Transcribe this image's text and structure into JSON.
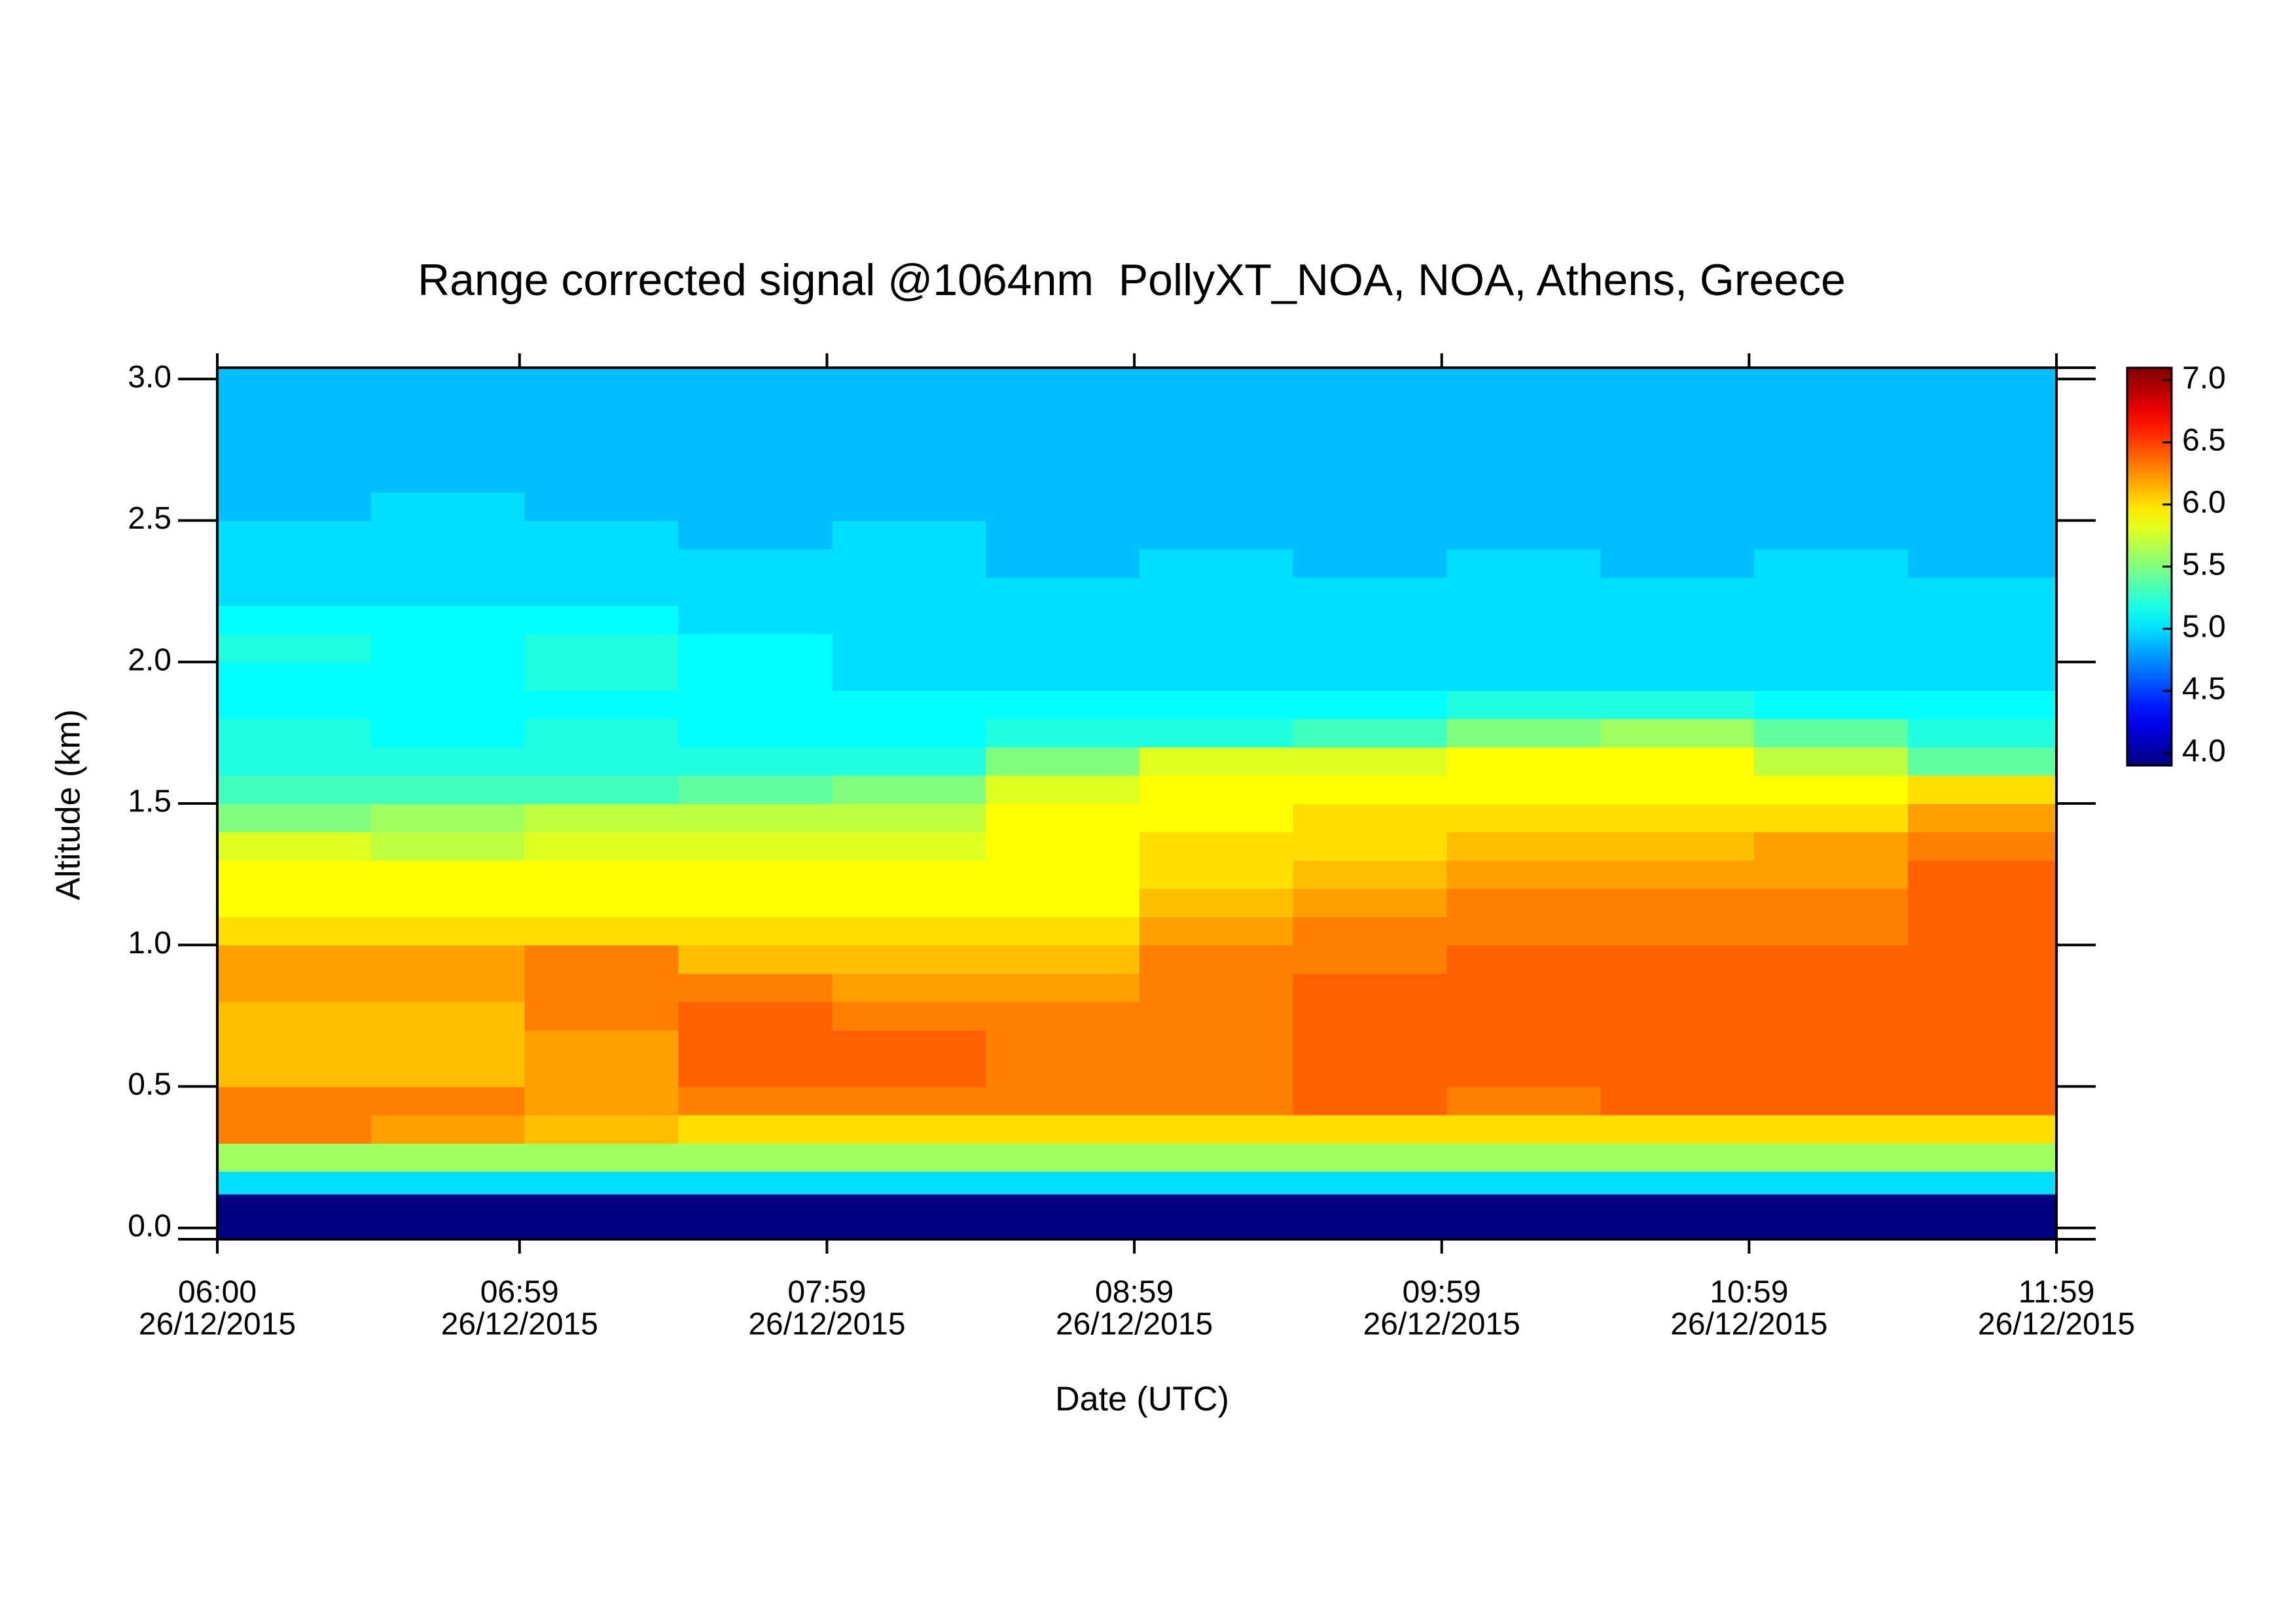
{
  "chart_data": {
    "type": "heatmap",
    "title": "Range corrected signal @1064nm  PollyXT_NOA, NOA, Athens, Greece",
    "x_label": "Date (UTC)",
    "y_label": "Altitude (km)",
    "colormap": "jet",
    "xlim": [
      "2015-12-26T06:00",
      "2015-12-26T11:59"
    ],
    "xticks": [
      {
        "value": "2015-12-26T06:00",
        "label": [
          "06:00",
          "26/12/2015"
        ]
      },
      {
        "value": "2015-12-26T06:59",
        "label": [
          "06:59",
          "26/12/2015"
        ]
      },
      {
        "value": "2015-12-26T07:59",
        "label": [
          "07:59",
          "26/12/2015"
        ]
      },
      {
        "value": "2015-12-26T08:59",
        "label": [
          "08:59",
          "26/12/2015"
        ]
      },
      {
        "value": "2015-12-26T09:59",
        "label": [
          "09:59",
          "26/12/2015"
        ]
      },
      {
        "value": "2015-12-26T10:59",
        "label": [
          "10:59",
          "26/12/2015"
        ]
      },
      {
        "value": "2015-12-26T11:59",
        "label": [
          "11:59",
          "26/12/2015"
        ]
      }
    ],
    "ylim": [
      -0.04,
      3.04
    ],
    "yticks": [
      {
        "value": 0,
        "label": "0.0"
      },
      0.5,
      {
        "value": 1,
        "label": "1.0"
      },
      1.5,
      {
        "value": 2,
        "label": "2.0"
      },
      2.5,
      {
        "value": 3,
        "label": "3.0"
      }
    ],
    "zlim": [
      3.9,
      7.1
    ],
    "zticks": [
      {
        "value": 4,
        "label": "4.0"
      },
      4.5,
      {
        "value": 5,
        "label": "5.0"
      },
      5.5,
      {
        "value": 6,
        "label": "6.0"
      },
      6.5,
      {
        "value": 7,
        "label": "7.0"
      }
    ],
    "xbins": [
      "2015-12-26T06:00",
      "2015-12-26T06:30",
      "2015-12-26T07:00",
      "2015-12-26T07:30",
      "2015-12-26T08:00",
      "2015-12-26T08:30",
      "2015-12-26T09:00",
      "2015-12-26T09:30",
      "2015-12-26T10:00",
      "2015-12-26T10:30",
      "2015-12-26T11:00",
      "2015-12-26T11:30",
      "2015-12-26T11:59"
    ],
    "ybins": [
      -0.04,
      0.12,
      0.2,
      0.3,
      0.4,
      0.5,
      0.6,
      0.7,
      0.8,
      0.9,
      1.0,
      1.1,
      1.2,
      1.3,
      1.4,
      1.5,
      1.6,
      1.7,
      1.8,
      1.9,
      2.0,
      2.1,
      2.2,
      2.3,
      2.4,
      2.5,
      2.6,
      2.7,
      2.8,
      2.9,
      3.04
    ],
    "z": [
      [
        3.9,
        3.9,
        3.9,
        3.9,
        3.9,
        3.9,
        3.9,
        3.9,
        3.9,
        3.9,
        3.9,
        3.9
      ],
      [
        5.0,
        5.0,
        5.0,
        5.0,
        5.0,
        5.0,
        5.0,
        5.0,
        5.0,
        5.0,
        5.0,
        5.0
      ],
      [
        5.6,
        5.6,
        5.6,
        5.6,
        5.6,
        5.6,
        5.6,
        5.6,
        5.6,
        5.6,
        5.6,
        5.6
      ],
      [
        6.3,
        6.2,
        6.1,
        6.0,
        6.0,
        6.0,
        6.0,
        6.0,
        6.0,
        6.0,
        6.0,
        6.0
      ],
      [
        6.3,
        6.3,
        6.2,
        6.3,
        6.3,
        6.3,
        6.3,
        6.4,
        6.3,
        6.4,
        6.4,
        6.4
      ],
      [
        6.1,
        6.1,
        6.2,
        6.4,
        6.4,
        6.3,
        6.3,
        6.4,
        6.4,
        6.4,
        6.4,
        6.4
      ],
      [
        6.1,
        6.1,
        6.2,
        6.4,
        6.4,
        6.3,
        6.3,
        6.4,
        6.4,
        6.4,
        6.4,
        6.4
      ],
      [
        6.1,
        6.1,
        6.3,
        6.4,
        6.3,
        6.3,
        6.3,
        6.4,
        6.4,
        6.4,
        6.4,
        6.4
      ],
      [
        6.2,
        6.2,
        6.3,
        6.3,
        6.2,
        6.2,
        6.3,
        6.4,
        6.4,
        6.4,
        6.4,
        6.4
      ],
      [
        6.2,
        6.2,
        6.3,
        6.1,
        6.1,
        6.1,
        6.3,
        6.3,
        6.4,
        6.4,
        6.4,
        6.4
      ],
      [
        6.0,
        6.0,
        6.0,
        6.0,
        6.0,
        6.0,
        6.2,
        6.3,
        6.3,
        6.3,
        6.3,
        6.4
      ],
      [
        5.9,
        5.9,
        5.9,
        5.9,
        5.9,
        5.9,
        6.1,
        6.2,
        6.3,
        6.3,
        6.3,
        6.4
      ],
      [
        5.9,
        5.9,
        5.9,
        5.9,
        5.9,
        5.9,
        6.0,
        6.1,
        6.2,
        6.2,
        6.2,
        6.4
      ],
      [
        5.8,
        5.7,
        5.8,
        5.8,
        5.8,
        5.9,
        6.0,
        6.0,
        6.1,
        6.1,
        6.2,
        6.3
      ],
      [
        5.5,
        5.6,
        5.7,
        5.7,
        5.7,
        5.9,
        5.9,
        6.0,
        6.0,
        6.0,
        6.0,
        6.2
      ],
      [
        5.3,
        5.3,
        5.3,
        5.4,
        5.5,
        5.8,
        5.9,
        5.9,
        5.9,
        5.9,
        5.9,
        6.0
      ],
      [
        5.2,
        5.2,
        5.2,
        5.2,
        5.2,
        5.5,
        5.8,
        5.8,
        5.9,
        5.9,
        5.7,
        5.4
      ],
      [
        5.2,
        5.1,
        5.2,
        5.1,
        5.1,
        5.2,
        5.2,
        5.3,
        5.5,
        5.6,
        5.4,
        5.2
      ],
      [
        5.1,
        5.1,
        5.1,
        5.1,
        5.1,
        5.1,
        5.1,
        5.1,
        5.2,
        5.2,
        5.1,
        5.1
      ],
      [
        5.1,
        5.1,
        5.2,
        5.1,
        5.0,
        5.0,
        5.0,
        5.0,
        5.0,
        5.0,
        5.0,
        5.0
      ],
      [
        5.2,
        5.1,
        5.2,
        5.1,
        5.0,
        5.0,
        5.0,
        5.0,
        5.0,
        5.0,
        5.0,
        5.0
      ],
      [
        5.1,
        5.1,
        5.1,
        5.0,
        5.0,
        5.0,
        5.0,
        5.0,
        5.0,
        5.0,
        5.0,
        5.0
      ],
      [
        5.0,
        5.0,
        5.0,
        5.0,
        5.0,
        5.0,
        5.0,
        5.0,
        5.0,
        5.0,
        5.0,
        5.0
      ],
      [
        5.0,
        5.0,
        5.0,
        5.0,
        5.0,
        4.9,
        5.0,
        4.9,
        5.0,
        4.9,
        5.0,
        4.9
      ],
      [
        5.0,
        5.0,
        5.0,
        4.9,
        5.0,
        4.9,
        4.9,
        4.9,
        4.9,
        4.9,
        4.9,
        4.9
      ],
      [
        4.9,
        5.0,
        4.9,
        4.9,
        4.9,
        4.9,
        4.9,
        4.9,
        4.9,
        4.9,
        4.9,
        4.9
      ],
      [
        4.9,
        4.9,
        4.9,
        4.9,
        4.9,
        4.9,
        4.9,
        4.9,
        4.9,
        4.9,
        4.9,
        4.9
      ],
      [
        4.9,
        4.9,
        4.9,
        4.9,
        4.9,
        4.9,
        4.9,
        4.9,
        4.9,
        4.9,
        4.9,
        4.9
      ],
      [
        4.9,
        4.9,
        4.9,
        4.9,
        4.9,
        4.9,
        4.9,
        4.9,
        4.9,
        4.9,
        4.9,
        4.9
      ],
      [
        4.9,
        4.9,
        4.9,
        4.9,
        4.9,
        4.9,
        4.9,
        4.9,
        4.9,
        4.9,
        4.9,
        4.9
      ]
    ]
  }
}
